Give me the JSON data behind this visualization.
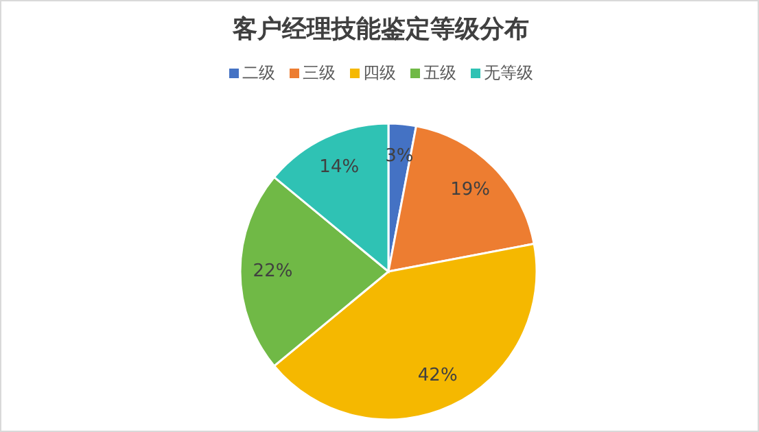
{
  "chart_data": {
    "type": "pie",
    "title": "客户经理技能鉴定等级分布",
    "categories": [
      "二级",
      "三级",
      "四级",
      "五级",
      "无等级"
    ],
    "values": [
      3,
      19,
      42,
      22,
      14
    ],
    "colors": [
      "#4472c4",
      "#ed7d31",
      "#f5b800",
      "#70b946",
      "#2fc2b4"
    ],
    "value_labels": [
      "3%",
      "19%",
      "42%",
      "22%",
      "14%"
    ],
    "legend": "top"
  }
}
